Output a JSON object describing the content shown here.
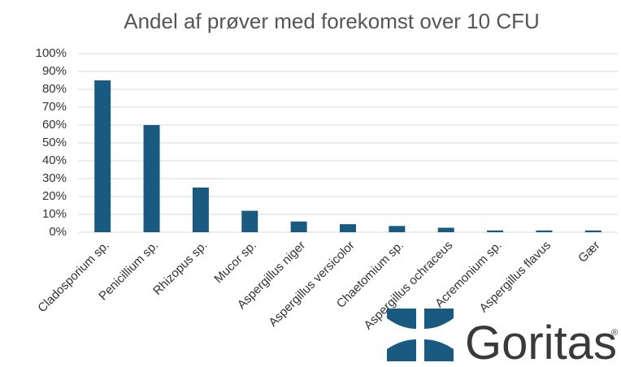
{
  "chart_data": {
    "type": "bar",
    "title": "Andel af prøver med forekomst over 10 CFU",
    "categories": [
      "Cladosporium sp.",
      "Penicillium sp.",
      "Rhizopus sp.",
      "Mucor sp.",
      "Aspergillus niger",
      "Aspergillus versicolor",
      "Chaetomium sp.",
      "Aspergillus ochraceus",
      "Acremonium sp.",
      "Aspergillus flavus",
      "Gær"
    ],
    "values": [
      85,
      60,
      25,
      12,
      6,
      4.5,
      3.5,
      2.5,
      1,
      1,
      1
    ],
    "color": "#1b5a80",
    "ylim": [
      0,
      100
    ],
    "yticks": [
      {
        "value": 0,
        "label": "0%"
      },
      {
        "value": 10,
        "label": "10%"
      },
      {
        "value": 20,
        "label": "20%"
      },
      {
        "value": 30,
        "label": "30%"
      },
      {
        "value": 40,
        "label": "40%"
      },
      {
        "value": 50,
        "label": "50%"
      },
      {
        "value": 60,
        "label": "60%"
      },
      {
        "value": 70,
        "label": "70%"
      },
      {
        "value": 80,
        "label": "80%"
      },
      {
        "value": 90,
        "label": "90%"
      },
      {
        "value": 100,
        "label": "100%"
      }
    ],
    "grid": true
  },
  "logo": {
    "text": "Goritas",
    "mark": "®"
  }
}
